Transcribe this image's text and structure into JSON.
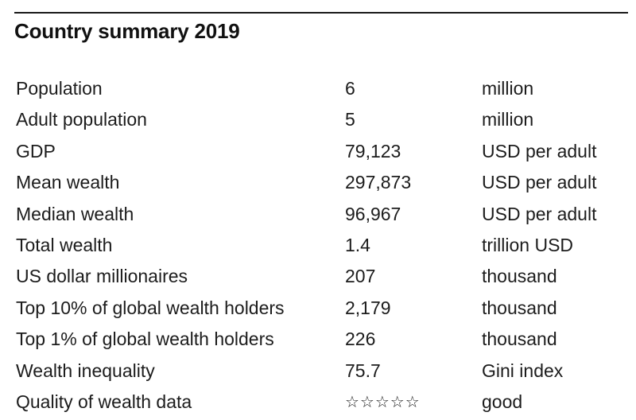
{
  "title": "Country summary 2019",
  "rows": [
    {
      "label": "Population",
      "value": "6",
      "unit": "million"
    },
    {
      "label": "Adult population",
      "value": "5",
      "unit": "million"
    },
    {
      "label": "GDP",
      "value": "79,123",
      "unit": "USD per adult"
    },
    {
      "label": "Mean wealth",
      "value": "297,873",
      "unit": "USD per adult"
    },
    {
      "label": "Median wealth",
      "value": "96,967",
      "unit": "USD per adult"
    },
    {
      "label": "Total wealth",
      "value": "1.4",
      "unit": "trillion USD"
    },
    {
      "label": "US dollar millionaires",
      "value": "207",
      "unit": "thousand"
    },
    {
      "label": "Top 10% of global wealth holders",
      "value": "2,179",
      "unit": "thousand"
    },
    {
      "label": "Top 1% of global wealth holders",
      "value": "226",
      "unit": "thousand"
    },
    {
      "label": "Wealth inequality",
      "value": "75.7",
      "unit": "Gini index"
    },
    {
      "label": "Quality of wealth data",
      "value": "☆☆☆☆☆",
      "unit": "good"
    }
  ]
}
